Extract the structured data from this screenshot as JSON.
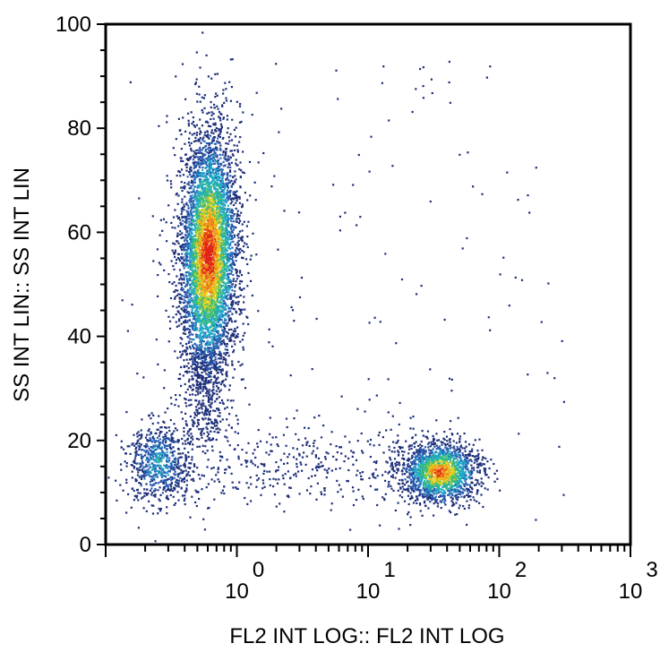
{
  "chart_data": {
    "type": "scatter",
    "subtype": "flow-cytometry-density-dot-plot",
    "title": "",
    "xlabel": "FL2 INT LOG:: FL2 INT LOG",
    "ylabel": "SS INT LIN:: SS INT LIN",
    "x_scale": "log",
    "xlim": [
      0.1,
      1000
    ],
    "x_ticks": [
      {
        "base": "10",
        "exp": "0",
        "value": 1
      },
      {
        "base": "10",
        "exp": "1",
        "value": 10
      },
      {
        "base": "10",
        "exp": "2",
        "value": 100
      },
      {
        "base": "10",
        "exp": "3",
        "value": 1000
      }
    ],
    "y_scale": "linear",
    "ylim": [
      0,
      100
    ],
    "y_ticks": [
      {
        "label": "0",
        "value": 0
      },
      {
        "label": "20",
        "value": 20
      },
      {
        "label": "40",
        "value": 40
      },
      {
        "label": "60",
        "value": 60
      },
      {
        "label": "80",
        "value": 80
      },
      {
        "label": "100",
        "value": 100
      }
    ],
    "grid": false,
    "legend": "none",
    "density_colors": [
      "#1e2f7a",
      "#2a5db0",
      "#20a8c8",
      "#3cc070",
      "#e8d020",
      "#f08a1c",
      "#e02418"
    ],
    "populations": [
      {
        "center_x": 0.6,
        "center_y": 56,
        "spread_x_log10": 0.11,
        "spread_y": 12,
        "peak_density": "red"
      },
      {
        "center_x": 0.25,
        "center_y": 16,
        "spread_x_log10": 0.12,
        "spread_y": 4,
        "peak_density": "cyan"
      },
      {
        "center_x": 35,
        "center_y": 14,
        "spread_x_log10": 0.15,
        "spread_y": 3,
        "peak_density": "orange"
      }
    ]
  }
}
